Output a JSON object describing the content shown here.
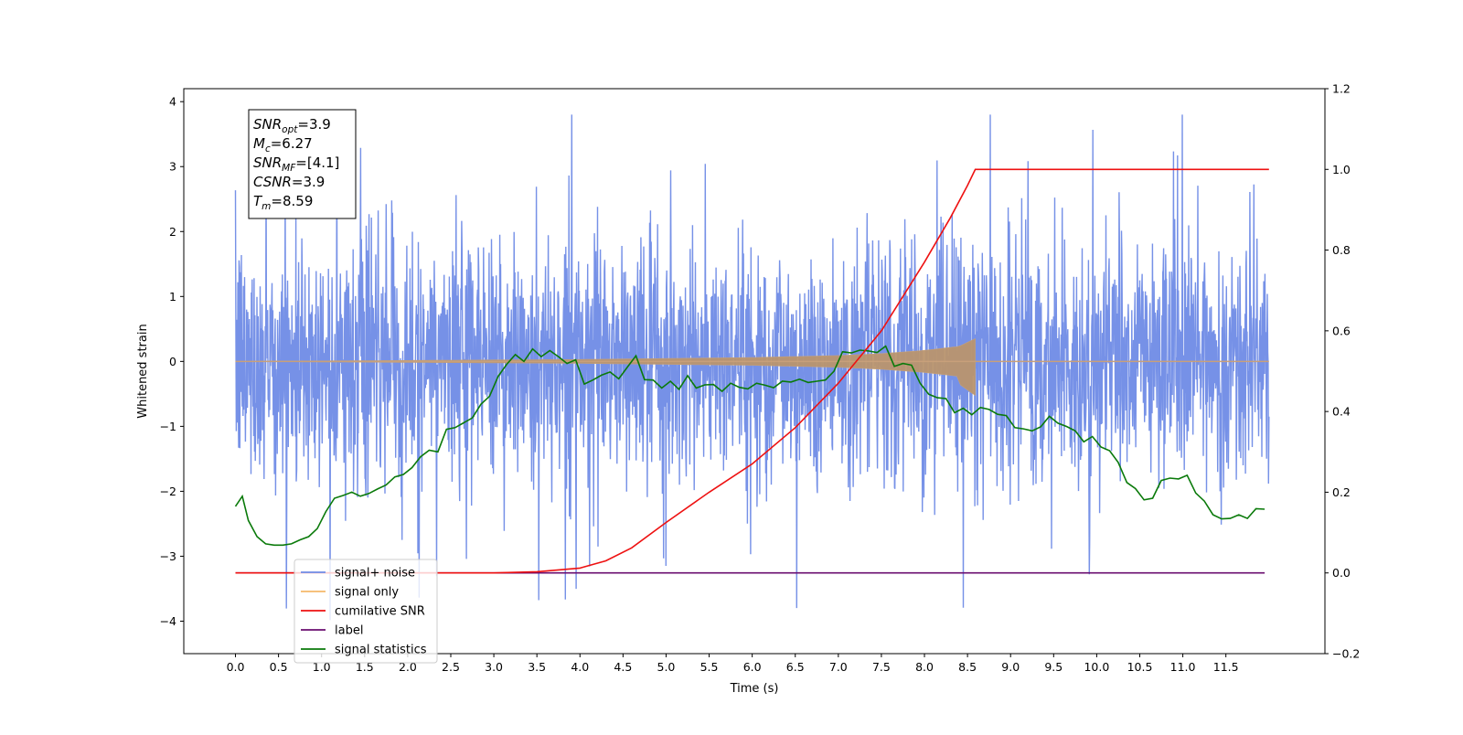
{
  "chart_data": {
    "type": "line",
    "xlabel": "Time (s)",
    "ylabel": "Whitened strain",
    "xlim": [
      -0.6,
      12.65
    ],
    "ylim": [
      -4.5,
      4.2
    ],
    "y2lim": [
      -0.2,
      1.2
    ],
    "x_ticks": [
      0.0,
      0.5,
      1.0,
      1.5,
      2.0,
      2.5,
      3.0,
      3.5,
      4.0,
      4.5,
      5.0,
      5.5,
      6.0,
      6.5,
      7.0,
      7.5,
      8.0,
      8.5,
      9.0,
      9.5,
      10.0,
      10.5,
      11.0,
      11.5
    ],
    "x_tick_labels": [
      "0.0",
      "0.5",
      "1.0",
      "1.5",
      "2.0",
      "2.5",
      "3.0",
      "3.5",
      "4.0",
      "4.5",
      "5.0",
      "5.5",
      "6.0",
      "6.5",
      "7.0",
      "7.5",
      "8.0",
      "8.5",
      "9.0",
      "9.5",
      "10.0",
      "10.5",
      "11.0",
      "11.5"
    ],
    "y_ticks": [
      -4,
      -3,
      -2,
      -1,
      0,
      1,
      2,
      3,
      4
    ],
    "y_tick_labels": [
      "−4",
      "−3",
      "−2",
      "−1",
      "0",
      "1",
      "2",
      "3",
      "4"
    ],
    "y2_ticks": [
      -0.2,
      0.0,
      0.2,
      0.4,
      0.6,
      0.8,
      1.0,
      1.2
    ],
    "y2_tick_labels": [
      "−0.2",
      "0.0",
      "0.2",
      "0.4",
      "0.6",
      "0.8",
      "1.0",
      "1.2"
    ],
    "grid": false,
    "legend_position": "lower-left",
    "annotation": [
      {
        "base": "SNR",
        "sub": "opt",
        "value": "=3.9"
      },
      {
        "base": "M",
        "sub": "c",
        "value": "=6.27"
      },
      {
        "base": "SNR",
        "sub": "MF",
        "value": "=[4.1]"
      },
      {
        "base": "CSNR",
        "sub": "",
        "value": "=3.9"
      },
      {
        "base": "T",
        "sub": "m",
        "value": "=8.59"
      }
    ],
    "series": [
      {
        "name": "signal+ noise",
        "color": "#6f8be6",
        "axis": "left",
        "x_range": [
          0.0,
          12.0
        ],
        "noise_std": 1.0,
        "envelope": [
          -3.7,
          3.8
        ],
        "description_values": {
          "max_approx": 3.8,
          "min_approx": -4.1
        }
      },
      {
        "name": "signal only",
        "color": "#f5b86a",
        "axis": "left",
        "x_range": [
          0.0,
          8.59
        ],
        "flat_after": 8.59,
        "amplitude_points": {
          "x": [
            0.0,
            4.0,
            6.0,
            7.0,
            7.5,
            8.0,
            8.4,
            8.59
          ],
          "y": [
            0.0,
            0.03,
            0.06,
            0.09,
            0.12,
            0.17,
            0.23,
            0.35
          ]
        }
      },
      {
        "name": "cumilative SNR",
        "color": "#ee1111",
        "axis": "right",
        "x": [
          0.0,
          3.0,
          3.5,
          4.0,
          4.3,
          4.6,
          5.0,
          5.5,
          6.0,
          6.5,
          7.0,
          7.5,
          8.0,
          8.3,
          8.5,
          8.59,
          8.6,
          12.0
        ],
        "y": [
          0.0,
          0.0,
          0.003,
          0.012,
          0.03,
          0.062,
          0.125,
          0.2,
          0.27,
          0.36,
          0.47,
          0.6,
          0.77,
          0.88,
          0.96,
          1.0,
          1.0,
          1.0
        ]
      },
      {
        "name": "label",
        "color": "#6a0d6f",
        "axis": "right",
        "x": [
          0.0,
          11.95
        ],
        "y": [
          0.0,
          0.0
        ]
      },
      {
        "name": "signal statistics",
        "color": "#0a7a0a",
        "axis": "right",
        "x": [
          0.0,
          0.08,
          0.15,
          0.25,
          0.35,
          0.45,
          0.55,
          0.65,
          0.75,
          0.85,
          0.95,
          1.05,
          1.15,
          1.25,
          1.35,
          1.45,
          1.55,
          1.65,
          1.75,
          1.85,
          1.95,
          2.05,
          2.15,
          2.25,
          2.35,
          2.45,
          2.55,
          2.65,
          2.75,
          2.85,
          2.95,
          3.05,
          3.15,
          3.25,
          3.35,
          3.45,
          3.55,
          3.65,
          3.75,
          3.85,
          3.95,
          4.05,
          4.15,
          4.25,
          4.35,
          4.45,
          4.55,
          4.65,
          4.75,
          4.85,
          4.95,
          5.05,
          5.15,
          5.25,
          5.35,
          5.45,
          5.55,
          5.65,
          5.75,
          5.85,
          5.95,
          6.05,
          6.15,
          6.25,
          6.35,
          6.45,
          6.55,
          6.65,
          6.75,
          6.85,
          6.95,
          7.05,
          7.15,
          7.25,
          7.35,
          7.45,
          7.55,
          7.65,
          7.75,
          7.85,
          7.95,
          8.05,
          8.15,
          8.25,
          8.35,
          8.45,
          8.55,
          8.65,
          8.75,
          8.85,
          8.95,
          9.05,
          9.15,
          9.25,
          9.35,
          9.45,
          9.55,
          9.65,
          9.75,
          9.85,
          9.95,
          10.05,
          10.15,
          10.25,
          10.35,
          10.45,
          10.55,
          10.65,
          10.75,
          10.85,
          10.95,
          11.05,
          11.15,
          11.25,
          11.35,
          11.45,
          11.55,
          11.65,
          11.75,
          11.85,
          11.95
        ],
        "y": [
          0.165,
          0.19,
          0.13,
          0.09,
          0.072,
          0.069,
          0.069,
          0.072,
          0.082,
          0.09,
          0.11,
          0.152,
          0.185,
          0.192,
          0.2,
          0.19,
          0.197,
          0.208,
          0.218,
          0.238,
          0.244,
          0.261,
          0.288,
          0.304,
          0.3,
          0.356,
          0.36,
          0.372,
          0.384,
          0.418,
          0.438,
          0.487,
          0.517,
          0.541,
          0.524,
          0.555,
          0.536,
          0.551,
          0.536,
          0.519,
          0.528,
          0.468,
          0.478,
          0.49,
          0.498,
          0.481,
          0.51,
          0.538,
          0.479,
          0.478,
          0.458,
          0.475,
          0.455,
          0.489,
          0.458,
          0.466,
          0.467,
          0.45,
          0.47,
          0.46,
          0.456,
          0.47,
          0.465,
          0.459,
          0.475,
          0.473,
          0.48,
          0.472,
          0.475,
          0.478,
          0.5,
          0.548,
          0.545,
          0.552,
          0.55,
          0.546,
          0.562,
          0.512,
          0.519,
          0.515,
          0.47,
          0.443,
          0.434,
          0.432,
          0.397,
          0.408,
          0.392,
          0.41,
          0.405,
          0.393,
          0.39,
          0.36,
          0.357,
          0.352,
          0.362,
          0.388,
          0.371,
          0.363,
          0.352,
          0.325,
          0.338,
          0.312,
          0.303,
          0.274,
          0.224,
          0.209,
          0.181,
          0.185,
          0.229,
          0.235,
          0.233,
          0.242,
          0.198,
          0.178,
          0.144,
          0.134,
          0.135,
          0.144,
          0.135,
          0.159,
          0.158
        ]
      }
    ]
  }
}
